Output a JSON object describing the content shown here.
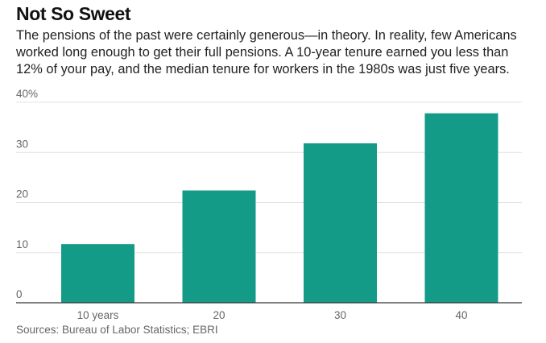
{
  "title": "Not So Sweet",
  "subtitle": "The pensions of the past were certainly generous—in theory. In reality, few Americans worked long enough to get their full pensions. A 10-year tenure earned you less than 12% of your pay, and the median tenure for workers in the 1980s was just five years.",
  "source": "Sources: Bureau of Labor Statistics; EBRI",
  "colors": {
    "bar": "#139b87",
    "grid": "#e3e3e3",
    "axis": "#333333",
    "tick_text": "#666666"
  },
  "chart_data": {
    "type": "bar",
    "title": "Not So Sweet",
    "categories": [
      "10 years",
      "20",
      "30",
      "40"
    ],
    "values": [
      11.7,
      22.4,
      31.8,
      37.8
    ],
    "xlabel": "",
    "ylabel": "",
    "ylim": [
      0,
      40
    ],
    "yticks": [
      0,
      10,
      20,
      30,
      40
    ],
    "ytick_labels": [
      "0",
      "10",
      "20",
      "30",
      "40%"
    ],
    "grid": true,
    "legend": "none"
  }
}
